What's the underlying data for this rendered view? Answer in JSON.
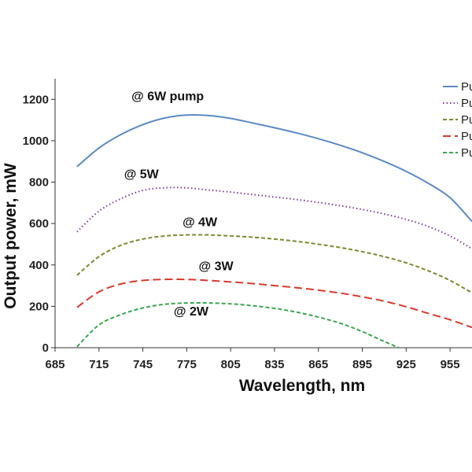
{
  "chart_data": {
    "type": "line",
    "xlabel": "Wavelength, nm",
    "ylabel": "Output power, mW",
    "xlim": [
      685,
      970
    ],
    "ylim": [
      0,
      1300
    ],
    "xticks": [
      685,
      715,
      745,
      775,
      805,
      835,
      865,
      895,
      925,
      955
    ],
    "yticks": [
      0,
      200,
      400,
      600,
      800,
      1000,
      1200
    ],
    "grid": false,
    "legend_position": "top-right",
    "series": [
      {
        "name": "Pu",
        "color": "#5b8ac4",
        "dash": "solid",
        "x": [
          700,
          715,
          730,
          745,
          760,
          775,
          790,
          805,
          820,
          835,
          850,
          865,
          880,
          895,
          910,
          925,
          940,
          955,
          970
        ],
        "y": [
          875,
          965,
          1030,
          1078,
          1110,
          1124,
          1122,
          1108,
          1086,
          1063,
          1038,
          1010,
          978,
          942,
          900,
          852,
          795,
          725,
          610
        ]
      },
      {
        "name": "Pu",
        "color": "#7b3f98",
        "dash": "dotted",
        "x": [
          700,
          715,
          730,
          745,
          760,
          775,
          790,
          805,
          820,
          835,
          850,
          865,
          880,
          895,
          910,
          925,
          940,
          955,
          970
        ],
        "y": [
          560,
          660,
          720,
          760,
          773,
          772,
          762,
          752,
          740,
          728,
          716,
          702,
          686,
          668,
          646,
          620,
          586,
          540,
          478
        ]
      },
      {
        "name": "Pu",
        "color": "#7a8b2e",
        "dash": "dashed-short",
        "x": [
          700,
          715,
          730,
          745,
          760,
          775,
          790,
          805,
          820,
          835,
          850,
          865,
          880,
          895,
          910,
          925,
          940,
          955,
          970
        ],
        "y": [
          350,
          440,
          495,
          525,
          540,
          545,
          545,
          540,
          534,
          525,
          514,
          500,
          484,
          464,
          440,
          410,
          372,
          325,
          265
        ]
      },
      {
        "name": "Pu",
        "color": "#d83a2e",
        "dash": "dashed-long",
        "x": [
          700,
          715,
          730,
          745,
          760,
          775,
          790,
          805,
          820,
          835,
          850,
          865,
          880,
          895,
          910,
          925,
          940,
          955,
          970
        ],
        "y": [
          195,
          270,
          308,
          325,
          330,
          330,
          325,
          318,
          310,
          300,
          290,
          278,
          264,
          246,
          225,
          198,
          166,
          135,
          98
        ]
      },
      {
        "name": "Pu",
        "color": "#3aa64f",
        "dash": "dashed-short",
        "x": [
          700,
          715,
          730,
          745,
          760,
          775,
          790,
          805,
          820,
          835,
          850,
          865,
          880,
          895,
          910,
          920
        ],
        "y": [
          5,
          110,
          160,
          192,
          210,
          216,
          216,
          212,
          203,
          190,
          172,
          148,
          118,
          78,
          30,
          0
        ]
      }
    ],
    "annotations": [
      {
        "text": "@ 6W pump",
        "x": 762,
        "y": 1195
      },
      {
        "text": "@ 5W",
        "x": 744,
        "y": 820
      },
      {
        "text": "@ 4W",
        "x": 784,
        "y": 588
      },
      {
        "text": "@ 3W",
        "x": 795,
        "y": 375
      },
      {
        "text": "@ 2W",
        "x": 778,
        "y": 155
      }
    ]
  }
}
